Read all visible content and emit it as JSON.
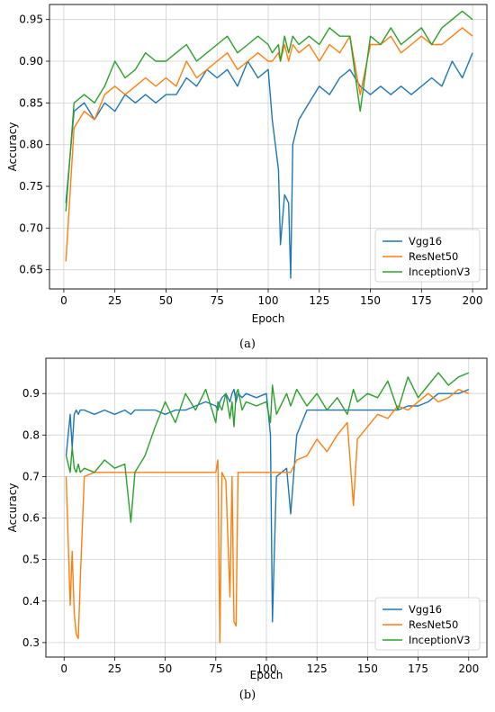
{
  "chart_data": [
    {
      "type": "line",
      "caption": "(a)",
      "xlabel": "Epoch",
      "ylabel": "Accuracy",
      "xlim": [
        -7,
        207
      ],
      "ylim": [
        0.627,
        0.968
      ],
      "xticks": [
        "0",
        "25",
        "50",
        "75",
        "100",
        "125",
        "150",
        "175",
        "200"
      ],
      "yticks": [
        "0.65",
        "0.70",
        "0.75",
        "0.80",
        "0.85",
        "0.90",
        "0.95"
      ],
      "grid": true,
      "legend_position": "lower-right",
      "colors": {
        "Vgg16": "#1f77b4",
        "ResNet50": "#ff7f0e",
        "InceptionV3": "#2ca02c"
      },
      "x": [
        1,
        5,
        10,
        15,
        20,
        25,
        30,
        35,
        40,
        45,
        50,
        55,
        60,
        65,
        70,
        75,
        80,
        85,
        90,
        95,
        100,
        102,
        105,
        106,
        108,
        110,
        111,
        112,
        115,
        120,
        125,
        130,
        135,
        140,
        145,
        150,
        155,
        160,
        165,
        170,
        175,
        180,
        185,
        190,
        195,
        200
      ],
      "series": [
        {
          "name": "Vgg16",
          "values": [
            0.73,
            0.84,
            0.85,
            0.83,
            0.85,
            0.84,
            0.86,
            0.85,
            0.86,
            0.85,
            0.86,
            0.86,
            0.88,
            0.87,
            0.89,
            0.88,
            0.89,
            0.87,
            0.9,
            0.88,
            0.89,
            0.83,
            0.77,
            0.68,
            0.74,
            0.73,
            0.64,
            0.8,
            0.83,
            0.85,
            0.87,
            0.86,
            0.88,
            0.89,
            0.87,
            0.86,
            0.87,
            0.86,
            0.87,
            0.86,
            0.87,
            0.88,
            0.87,
            0.9,
            0.88,
            0.91
          ]
        },
        {
          "name": "ResNet50",
          "values": [
            0.66,
            0.82,
            0.84,
            0.83,
            0.86,
            0.87,
            0.86,
            0.87,
            0.88,
            0.87,
            0.88,
            0.87,
            0.9,
            0.88,
            0.89,
            0.9,
            0.91,
            0.89,
            0.9,
            0.91,
            0.9,
            0.9,
            0.91,
            0.9,
            0.92,
            0.9,
            0.91,
            0.92,
            0.91,
            0.92,
            0.9,
            0.92,
            0.91,
            0.93,
            0.86,
            0.92,
            0.92,
            0.93,
            0.91,
            0.92,
            0.93,
            0.92,
            0.92,
            0.93,
            0.94,
            0.93
          ]
        },
        {
          "name": "InceptionV3",
          "values": [
            0.72,
            0.85,
            0.86,
            0.85,
            0.87,
            0.9,
            0.88,
            0.89,
            0.91,
            0.9,
            0.9,
            0.91,
            0.92,
            0.9,
            0.91,
            0.92,
            0.93,
            0.91,
            0.92,
            0.93,
            0.92,
            0.91,
            0.92,
            0.9,
            0.93,
            0.91,
            0.92,
            0.93,
            0.92,
            0.93,
            0.92,
            0.94,
            0.93,
            0.93,
            0.84,
            0.93,
            0.92,
            0.94,
            0.92,
            0.93,
            0.94,
            0.92,
            0.94,
            0.95,
            0.96,
            0.95
          ]
        }
      ]
    },
    {
      "type": "line",
      "caption": "(b)",
      "xlabel": "Epoch",
      "ylabel": "Accuracy",
      "xlim": [
        -9,
        209
      ],
      "ylim": [
        0.265,
        0.985
      ],
      "xticks": [
        "0",
        "25",
        "50",
        "75",
        "100",
        "125",
        "150",
        "175",
        "200"
      ],
      "yticks": [
        "0.3",
        "0.4",
        "0.5",
        "0.6",
        "0.7",
        "0.8",
        "0.9"
      ],
      "grid": true,
      "legend_position": "lower-right",
      "colors": {
        "Vgg16": "#1f77b4",
        "ResNet50": "#ff7f0e",
        "InceptionV3": "#2ca02c"
      },
      "x": [
        1,
        3,
        4,
        5,
        6,
        7,
        8,
        10,
        15,
        20,
        25,
        30,
        33,
        35,
        40,
        45,
        50,
        55,
        60,
        65,
        70,
        75,
        76,
        77,
        78,
        80,
        82,
        83,
        84,
        85,
        86,
        88,
        90,
        95,
        100,
        102,
        103,
        105,
        110,
        112,
        115,
        120,
        125,
        130,
        135,
        140,
        143,
        145,
        150,
        155,
        160,
        165,
        170,
        175,
        180,
        185,
        190,
        195,
        200
      ],
      "series": [
        {
          "name": "Vgg16",
          "values": [
            0.75,
            0.85,
            0.77,
            0.85,
            0.86,
            0.85,
            0.86,
            0.86,
            0.85,
            0.86,
            0.85,
            0.86,
            0.85,
            0.86,
            0.86,
            0.86,
            0.85,
            0.86,
            0.86,
            0.87,
            0.88,
            0.87,
            0.86,
            0.88,
            0.89,
            0.9,
            0.88,
            0.9,
            0.91,
            0.88,
            0.9,
            0.89,
            0.9,
            0.89,
            0.9,
            0.8,
            0.35,
            0.7,
            0.72,
            0.61,
            0.8,
            0.86,
            0.86,
            0.86,
            0.86,
            0.86,
            0.86,
            0.86,
            0.86,
            0.86,
            0.86,
            0.86,
            0.87,
            0.87,
            0.88,
            0.9,
            0.9,
            0.9,
            0.91
          ]
        },
        {
          "name": "ResNet50",
          "values": [
            0.7,
            0.39,
            0.52,
            0.37,
            0.32,
            0.31,
            0.45,
            0.7,
            0.71,
            0.71,
            0.71,
            0.71,
            0.71,
            0.71,
            0.71,
            0.71,
            0.71,
            0.71,
            0.71,
            0.71,
            0.71,
            0.71,
            0.74,
            0.3,
            0.71,
            0.69,
            0.41,
            0.7,
            0.35,
            0.34,
            0.71,
            0.71,
            0.71,
            0.71,
            0.71,
            0.71,
            0.71,
            0.71,
            0.71,
            0.71,
            0.74,
            0.75,
            0.79,
            0.76,
            0.8,
            0.83,
            0.63,
            0.79,
            0.82,
            0.85,
            0.84,
            0.87,
            0.86,
            0.88,
            0.9,
            0.88,
            0.89,
            0.91,
            0.9
          ]
        },
        {
          "name": "InceptionV3",
          "values": [
            0.75,
            0.71,
            0.77,
            0.72,
            0.71,
            0.73,
            0.71,
            0.72,
            0.71,
            0.74,
            0.72,
            0.73,
            0.59,
            0.71,
            0.75,
            0.82,
            0.88,
            0.83,
            0.9,
            0.86,
            0.91,
            0.83,
            0.88,
            0.87,
            0.86,
            0.9,
            0.84,
            0.88,
            0.82,
            0.9,
            0.91,
            0.86,
            0.88,
            0.87,
            0.88,
            0.83,
            0.92,
            0.85,
            0.9,
            0.87,
            0.91,
            0.87,
            0.9,
            0.86,
            0.89,
            0.85,
            0.91,
            0.88,
            0.9,
            0.89,
            0.93,
            0.86,
            0.94,
            0.89,
            0.92,
            0.95,
            0.92,
            0.94,
            0.95
          ]
        }
      ]
    }
  ]
}
